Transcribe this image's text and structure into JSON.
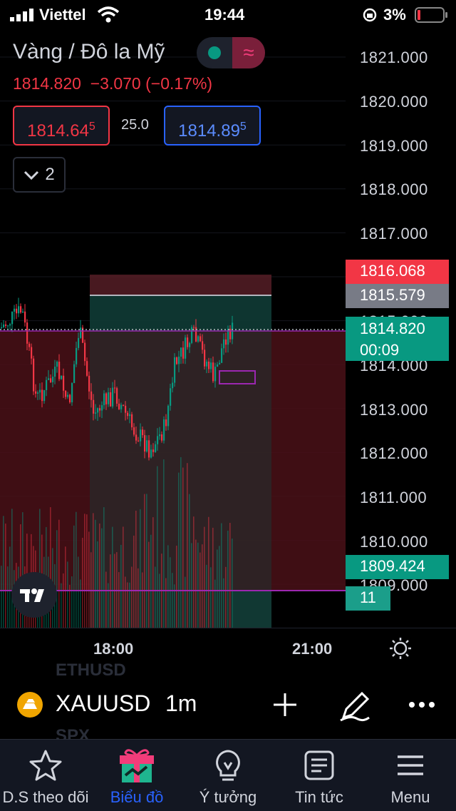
{
  "status_bar": {
    "carrier": "Viettel",
    "time": "19:44",
    "battery": "3%"
  },
  "header": {
    "title": "Vàng / Đô la Mỹ",
    "price": "1814.820",
    "change": "−3.070",
    "change_pct": "(−0.17%)",
    "bid_main": "1814.64",
    "bid_sup": "5",
    "spread": "25.0",
    "ask_main": "1814.89",
    "ask_sup": "5",
    "collapse_count": "2"
  },
  "price_axis": {
    "labels": [
      "1821.000",
      "1820.000",
      "1819.000",
      "1818.000",
      "1817.000",
      "1815.000",
      "1814.000",
      "1813.000",
      "1812.000",
      "1811.000",
      "1810.000",
      "1809.000"
    ]
  },
  "tags": {
    "red": "1816.068",
    "gray": "1815.579",
    "last_price": "1814.820",
    "countdown": "00:09",
    "low": "1809.424",
    "volume": "11"
  },
  "time_axis": {
    "labels": [
      "18:00",
      "21:00"
    ]
  },
  "symbol_bar": {
    "ghost_above": "ETHUSD",
    "ghost_below": "SPX",
    "symbol": "XAUUSD",
    "timeframe": "1m"
  },
  "tabs": [
    {
      "label": "D.S theo dõi",
      "icon": "star-icon",
      "active": false
    },
    {
      "label": "Biểu đồ",
      "icon": "gift-chart-icon",
      "active": true
    },
    {
      "label": "Ý tưởng",
      "icon": "lightbulb-icon",
      "active": false
    },
    {
      "label": "Tin tức",
      "icon": "news-icon",
      "active": false
    },
    {
      "label": "Menu",
      "icon": "menu-icon",
      "active": false
    }
  ],
  "colors": {
    "up": "#089981",
    "down": "#f23645",
    "accent": "#2962ff",
    "range": "#9c27b0"
  }
}
